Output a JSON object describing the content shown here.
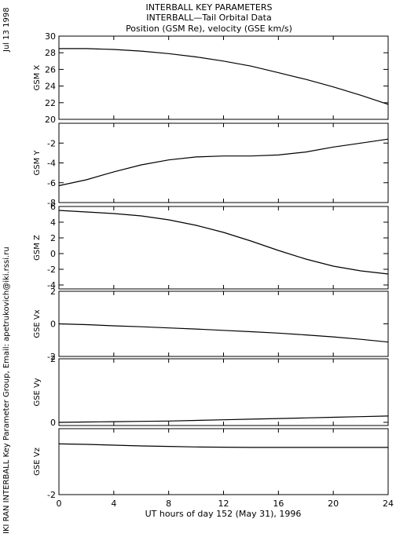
{
  "header": {
    "title_line1": "INTERBALL KEY PARAMETERS",
    "title_line2": "INTERBALL—Tail Orbital Data",
    "title_line3": "Position (GSM Re), velocity (GSE km/s)"
  },
  "side_date": "Jul 13 1998",
  "side_credit": "IKI RAN INTERBALL Key Parameter Group, Email: apetrukovich@iki.rssi.ru",
  "xaxis": {
    "label": "UT hours of day 152 (May 31), 1996",
    "ticks": [
      0,
      4,
      8,
      12,
      16,
      20,
      24
    ],
    "range": [
      0,
      24
    ]
  },
  "chart_data": [
    {
      "type": "line",
      "ylabel": "GSM X",
      "ylim": [
        20,
        30
      ],
      "yticks": [
        20,
        22,
        24,
        26,
        28,
        30
      ],
      "x": [
        0,
        2,
        4,
        6,
        8,
        10,
        12,
        14,
        16,
        18,
        20,
        22,
        24
      ],
      "y": [
        28.5,
        28.5,
        28.4,
        28.2,
        27.9,
        27.5,
        27.0,
        26.4,
        25.6,
        24.8,
        23.9,
        22.9,
        21.8
      ]
    },
    {
      "type": "line",
      "ylabel": "GSM Y",
      "ylim": [
        -8,
        0
      ],
      "yticks": [
        -8,
        -6,
        -4,
        -2
      ],
      "x": [
        0,
        2,
        4,
        6,
        8,
        10,
        12,
        14,
        16,
        18,
        20,
        22,
        24
      ],
      "y": [
        -6.3,
        -5.7,
        -4.9,
        -4.2,
        -3.7,
        -3.4,
        -3.3,
        -3.3,
        -3.2,
        -2.9,
        -2.4,
        -2.0,
        -1.6
      ]
    },
    {
      "type": "line",
      "ylabel": "GSM Z",
      "ylim": [
        -4.5,
        6
      ],
      "yticks": [
        -4,
        -2,
        0,
        2,
        4,
        6
      ],
      "x": [
        0,
        2,
        4,
        6,
        8,
        10,
        12,
        14,
        16,
        18,
        20,
        22,
        24
      ],
      "y": [
        5.5,
        5.3,
        5.1,
        4.8,
        4.3,
        3.6,
        2.7,
        1.6,
        0.4,
        -0.7,
        -1.6,
        -2.2,
        -2.6
      ]
    },
    {
      "type": "line",
      "ylabel": "GSE Vx",
      "ylim": [
        -2,
        2
      ],
      "yticks": [
        -2,
        0,
        2
      ],
      "x": [
        0,
        2,
        4,
        6,
        8,
        10,
        12,
        14,
        16,
        18,
        20,
        22,
        24
      ],
      "y": [
        0.0,
        -0.05,
        -0.12,
        -0.18,
        -0.25,
        -0.32,
        -0.4,
        -0.48,
        -0.57,
        -0.68,
        -0.8,
        -0.95,
        -1.12
      ]
    },
    {
      "type": "line",
      "ylabel": "GSE Vy",
      "ylim": [
        -0.1,
        2
      ],
      "yticks": [
        0,
        2
      ],
      "x": [
        0,
        2,
        4,
        6,
        8,
        10,
        12,
        14,
        16,
        18,
        20,
        22,
        24
      ],
      "y": [
        0.0,
        0.01,
        0.02,
        0.03,
        0.04,
        0.06,
        0.08,
        0.1,
        0.12,
        0.14,
        0.16,
        0.18,
        0.2
      ]
    },
    {
      "type": "line",
      "ylabel": "GSE Vz",
      "ylim": [
        -2,
        0.6
      ],
      "yticks": [
        -2
      ],
      "x": [
        0,
        2,
        4,
        6,
        8,
        10,
        12,
        14,
        16,
        18,
        20,
        22,
        24
      ],
      "y": [
        0.0,
        -0.02,
        -0.05,
        -0.08,
        -0.1,
        -0.12,
        -0.13,
        -0.14,
        -0.14,
        -0.14,
        -0.14,
        -0.14,
        -0.14
      ]
    }
  ]
}
